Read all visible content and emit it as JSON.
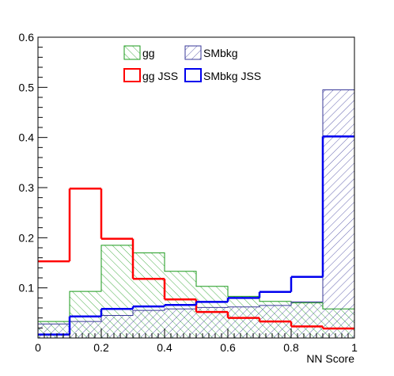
{
  "chart_data": {
    "type": "histogram",
    "title": "",
    "xlabel": "NN Score",
    "ylabel": "",
    "xlim": [
      0,
      1
    ],
    "ylim": [
      0,
      0.6
    ],
    "grid": false,
    "legend_position": "top-center",
    "bin_edges": [
      0,
      0.1,
      0.2,
      0.3,
      0.4,
      0.5,
      0.6,
      0.7,
      0.8,
      0.9,
      1.0
    ],
    "x_ticks": [
      "0",
      "0.2",
      "0.4",
      "0.6",
      "0.8",
      "1"
    ],
    "y_ticks": [
      "0.1",
      "0.2",
      "0.3",
      "0.4",
      "0.5",
      "0.6"
    ],
    "series": [
      {
        "name": "gg",
        "style": "filled hatched",
        "hatch": "\\\\\\",
        "color": "#1a9a1a",
        "values": [
          0.033,
          0.093,
          0.185,
          0.17,
          0.133,
          0.103,
          0.083,
          0.073,
          0.07,
          0.058
        ]
      },
      {
        "name": "SMbkg",
        "style": "filled hatched",
        "hatch": "///",
        "color": "#3a3a9a",
        "values": [
          0.028,
          0.033,
          0.045,
          0.055,
          0.058,
          0.061,
          0.062,
          0.065,
          0.072,
          0.495
        ]
      },
      {
        "name": "gg JSS",
        "style": "line",
        "color": "#ff0000",
        "values": [
          0.153,
          0.298,
          0.198,
          0.118,
          0.077,
          0.052,
          0.04,
          0.033,
          0.023,
          0.019
        ]
      },
      {
        "name": "SMbkg JSS",
        "style": "line",
        "color": "#0000ee",
        "values": [
          0.007,
          0.043,
          0.058,
          0.063,
          0.066,
          0.072,
          0.08,
          0.092,
          0.122,
          0.402
        ]
      }
    ]
  }
}
